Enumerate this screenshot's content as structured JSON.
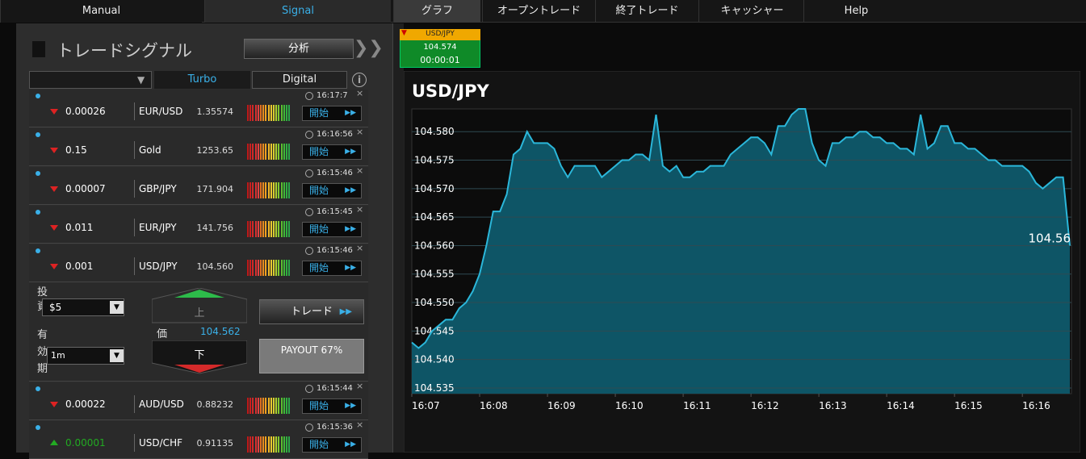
{
  "nav": {
    "items": [
      "Manual",
      "Signal",
      "グラフ",
      "オープントレード",
      "終了トレード",
      "キャッシャー",
      "Help"
    ]
  },
  "signal_panel": {
    "title": "トレードシグナル",
    "analyze_button": "分析",
    "tabs": [
      "Turbo",
      "Digital"
    ],
    "start_button": "開始",
    "rows": [
      {
        "time": "16:17:7",
        "direction": "down",
        "change": "0.00026",
        "symbol": "EUR/USD",
        "price": "1.35574"
      },
      {
        "time": "16:16:56",
        "direction": "down",
        "change": "0.15",
        "symbol": "Gold",
        "price": "1253.65"
      },
      {
        "time": "16:15:46",
        "direction": "down",
        "change": "0.00007",
        "symbol": "GBP/JPY",
        "price": "171.904"
      },
      {
        "time": "16:15:45",
        "direction": "down",
        "change": "0.011",
        "symbol": "EUR/JPY",
        "price": "141.756"
      },
      {
        "time": "16:15:46",
        "direction": "down",
        "change": "0.001",
        "symbol": "USD/JPY",
        "price": "104.560"
      },
      {
        "time": "16:15:44",
        "direction": "down",
        "change": "0.00022",
        "symbol": "AUD/USD",
        "price": "0.88232"
      },
      {
        "time": "16:15:36",
        "direction": "up",
        "change": "0.00001",
        "symbol": "USD/CHF",
        "price": "0.91135"
      }
    ],
    "trade_form": {
      "invest_label": "投資",
      "invest_value": "$5",
      "expiry_label": "有効期限",
      "expiry_value": "1m",
      "up_button": "上",
      "price_label": "価",
      "price_value": "104.562",
      "down_button": "下",
      "trade_button": "トレード",
      "payout": "PAYOUT 67%"
    }
  },
  "mini_ticker": {
    "symbol": "USD/JPY",
    "price": "104.574",
    "timer": "00:00:01"
  },
  "chart_data": {
    "type": "area",
    "title": "USD/JPY",
    "color": "#2bb7da",
    "fill": "#0f5a6c",
    "grid": true,
    "current_label": "104.56",
    "categories": [
      "16:07",
      null,
      null,
      null,
      null,
      null,
      null,
      null,
      null,
      null,
      "16:08",
      null,
      null,
      null,
      null,
      null,
      null,
      null,
      null,
      null,
      "16:09",
      null,
      null,
      null,
      null,
      null,
      null,
      null,
      null,
      null,
      "16:10",
      null,
      null,
      null,
      null,
      null,
      null,
      null,
      null,
      null,
      "16:11",
      null,
      null,
      null,
      null,
      null,
      null,
      null,
      null,
      null,
      "16:12",
      null,
      null,
      null,
      null,
      null,
      null,
      null,
      null,
      null,
      "16:13",
      null,
      null,
      null,
      null,
      null,
      null,
      null,
      null,
      null,
      "16:14",
      null,
      null,
      null,
      null,
      null,
      null,
      null,
      null,
      null,
      "16:15",
      null,
      null,
      null,
      null,
      null,
      null,
      null,
      null,
      null,
      "16:16",
      null,
      null,
      null,
      null,
      null,
      null,
      null
    ],
    "values": [
      104.543,
      104.542,
      104.543,
      104.545,
      104.546,
      104.547,
      104.547,
      104.549,
      104.55,
      104.552,
      104.555,
      104.56,
      104.566,
      104.566,
      104.569,
      104.576,
      104.577,
      104.58,
      104.578,
      104.578,
      104.578,
      104.577,
      104.574,
      104.572,
      104.574,
      104.574,
      104.574,
      104.574,
      104.572,
      104.573,
      104.574,
      104.575,
      104.575,
      104.576,
      104.576,
      104.575,
      104.583,
      104.574,
      104.573,
      104.574,
      104.572,
      104.572,
      104.573,
      104.573,
      104.574,
      104.574,
      104.574,
      104.576,
      104.577,
      104.578,
      104.579,
      104.579,
      104.578,
      104.576,
      104.581,
      104.581,
      104.583,
      104.584,
      104.584,
      104.578,
      104.575,
      104.574,
      104.578,
      104.578,
      104.579,
      104.579,
      104.58,
      104.58,
      104.579,
      104.579,
      104.578,
      104.578,
      104.577,
      104.577,
      104.576,
      104.583,
      104.577,
      104.578,
      104.581,
      104.581,
      104.578,
      104.578,
      104.577,
      104.577,
      104.576,
      104.575,
      104.575,
      104.574,
      104.574,
      104.574,
      104.574,
      104.573,
      104.571,
      104.57,
      104.571,
      104.572,
      104.572,
      104.56
    ],
    "ylim": [
      104.534,
      104.584
    ],
    "yticks": [
      104.535,
      {
        "value": 104.54,
        "label": "104.540"
      },
      104.545,
      {
        "value": 104.55,
        "label": "104.550"
      },
      104.555,
      {
        "value": 104.56,
        "label": "104.560"
      },
      104.565,
      {
        "value": 104.57,
        "label": "104.570"
      },
      104.575,
      {
        "value": 104.58,
        "label": "104.580"
      }
    ]
  }
}
